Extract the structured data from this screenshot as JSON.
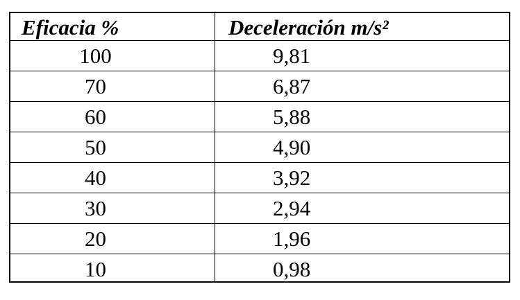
{
  "table": {
    "header": [
      "Eficacia %",
      "Deceleración m/s²"
    ],
    "rows": [
      [
        "100",
        "9,81"
      ],
      [
        "70",
        "6,87"
      ],
      [
        "60",
        "5,88"
      ],
      [
        "50",
        "4,90"
      ],
      [
        "40",
        "3,92"
      ],
      [
        "30",
        "2,94"
      ],
      [
        "20",
        "1,96"
      ],
      [
        "10",
        "0,98"
      ]
    ]
  }
}
